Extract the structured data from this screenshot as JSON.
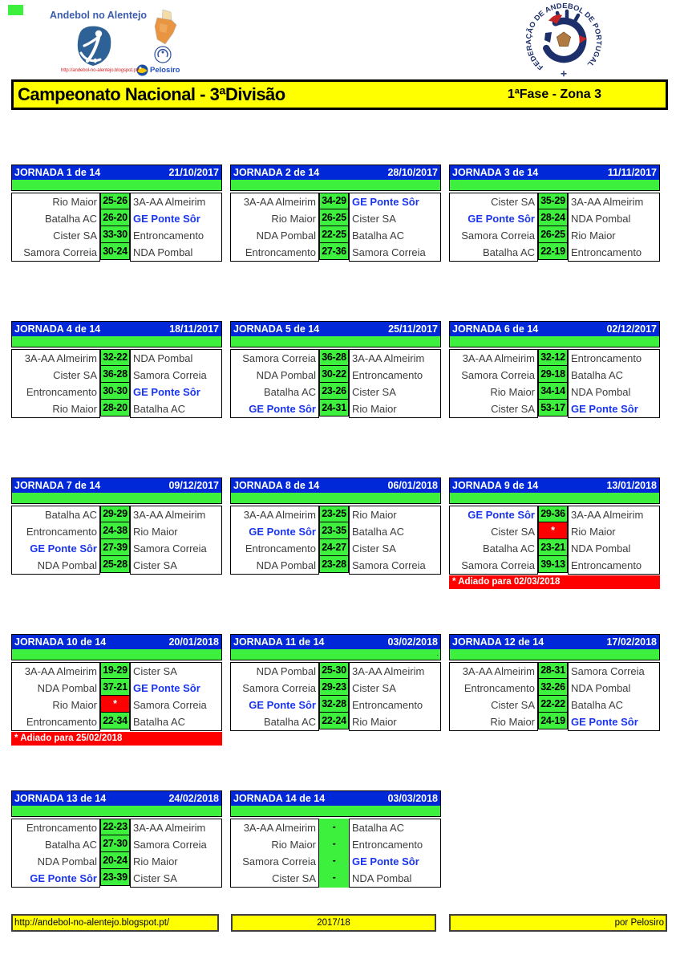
{
  "branding": {
    "site_name": "Andebol no Alentejo",
    "site_url": "http://andebol-no-alentejo.blogspot.pt/",
    "sponsor_name": "Pelosiro",
    "federation_name": "FEDERAÇÃO DE ANDEBOL DE PORTUGAL",
    "federation_cross": "✛"
  },
  "banner": {
    "title": "Campeonato Nacional - 3ªDivisão",
    "phase": "1ªFase - Zona 3"
  },
  "footer": {
    "url": "http://andebol-no-alentejo.blogspot.pt/",
    "season": "2017/18",
    "credit": "por Pelosiro"
  },
  "colors": {
    "header_blue": "#0028d8",
    "cell_green": "#3df03d",
    "postponed_red": "#ff0000",
    "banner_yellow": "#ffff00",
    "highlight_blue": "#1a35ee",
    "team_gray": "#3d3d3d"
  },
  "highlight_team": "GE Ponte Sôr",
  "postponed_marker": "*",
  "jornadas": [
    {
      "title": "JORNADA 1 de 14",
      "date": "21/10/2017",
      "matches": [
        {
          "home": "Rio Maior",
          "score": "25-26",
          "away": "3A-AA Almeirim"
        },
        {
          "home": "Batalha AC",
          "score": "26-20",
          "away": "GE Ponte Sôr"
        },
        {
          "home": "Cister SA",
          "score": "33-30",
          "away": "Entroncamento"
        },
        {
          "home": "Samora Correia",
          "score": "30-24",
          "away": "NDA Pombal"
        }
      ]
    },
    {
      "title": "JORNADA 2 de 14",
      "date": "28/10/2017",
      "matches": [
        {
          "home": "3A-AA Almeirim",
          "score": "34-29",
          "away": "GE Ponte Sôr"
        },
        {
          "home": "Rio Maior",
          "score": "26-25",
          "away": "Cister SA"
        },
        {
          "home": "NDA Pombal",
          "score": "22-25",
          "away": "Batalha AC"
        },
        {
          "home": "Entroncamento",
          "score": "27-36",
          "away": "Samora Correia"
        }
      ]
    },
    {
      "title": "JORNADA 3 de 14",
      "date": "11/11/2017",
      "matches": [
        {
          "home": "Cister SA",
          "score": "35-29",
          "away": "3A-AA Almeirim"
        },
        {
          "home": "GE Ponte Sôr",
          "score": "28-24",
          "away": "NDA Pombal"
        },
        {
          "home": "Samora Correia",
          "score": "26-25",
          "away": "Rio Maior"
        },
        {
          "home": "Batalha AC",
          "score": "22-19",
          "away": "Entroncamento"
        }
      ]
    },
    {
      "title": "JORNADA 4 de 14",
      "date": "18/11/2017",
      "matches": [
        {
          "home": "3A-AA Almeirim",
          "score": "32-22",
          "away": "NDA Pombal"
        },
        {
          "home": "Cister SA",
          "score": "36-28",
          "away": "Samora Correia"
        },
        {
          "home": "Entroncamento",
          "score": "30-30",
          "away": "GE Ponte Sôr"
        },
        {
          "home": "Rio Maior",
          "score": "28-20",
          "away": "Batalha AC"
        }
      ]
    },
    {
      "title": "JORNADA 5 de 14",
      "date": "25/11/2017",
      "matches": [
        {
          "home": "Samora Correia",
          "score": "36-28",
          "away": "3A-AA Almeirim"
        },
        {
          "home": "NDA Pombal",
          "score": "30-22",
          "away": "Entroncamento"
        },
        {
          "home": "Batalha AC",
          "score": "23-26",
          "away": "Cister SA"
        },
        {
          "home": "GE Ponte Sôr",
          "score": "24-31",
          "away": "Rio Maior"
        }
      ]
    },
    {
      "title": "JORNADA 6 de 14",
      "date": "02/12/2017",
      "matches": [
        {
          "home": "3A-AA Almeirim",
          "score": "32-12",
          "away": "Entroncamento"
        },
        {
          "home": "Samora Correia",
          "score": "29-18",
          "away": "Batalha AC"
        },
        {
          "home": "Rio Maior",
          "score": "34-14",
          "away": "NDA Pombal"
        },
        {
          "home": "Cister SA",
          "score": "53-17",
          "away": "GE Ponte Sôr"
        }
      ]
    },
    {
      "title": "JORNADA 7 de 14",
      "date": "09/12/2017",
      "matches": [
        {
          "home": "Batalha AC",
          "score": "29-29",
          "away": "3A-AA Almeirim"
        },
        {
          "home": "Entroncamento",
          "score": "24-38",
          "away": "Rio Maior"
        },
        {
          "home": "GE Ponte Sôr",
          "score": "27-39",
          "away": "Samora Correia"
        },
        {
          "home": "NDA Pombal",
          "score": "25-28",
          "away": "Cister SA"
        }
      ]
    },
    {
      "title": "JORNADA 8 de 14",
      "date": "06/01/2018",
      "matches": [
        {
          "home": "3A-AA Almeirim",
          "score": "23-25",
          "away": "Rio Maior"
        },
        {
          "home": "GE Ponte Sôr",
          "score": "23-35",
          "away": "Batalha AC"
        },
        {
          "home": "Entroncamento",
          "score": "24-27",
          "away": "Cister SA"
        },
        {
          "home": "NDA Pombal",
          "score": "23-28",
          "away": "Samora Correia"
        }
      ]
    },
    {
      "title": "JORNADA 9 de 14",
      "date": "13/01/2018",
      "note": "* Adiado para 02/03/2018",
      "matches": [
        {
          "home": "GE Ponte Sôr",
          "score": "29-36",
          "away": "3A-AA Almeirim"
        },
        {
          "home": "Cister SA",
          "score": "*",
          "away": "Rio Maior"
        },
        {
          "home": "Batalha AC",
          "score": "23-21",
          "away": "NDA Pombal"
        },
        {
          "home": "Samora Correia",
          "score": "39-13",
          "away": "Entroncamento"
        }
      ]
    },
    {
      "title": "JORNADA 10 de 14",
      "date": "20/01/2018",
      "note": "* Adiado para 25/02/2018",
      "matches": [
        {
          "home": "3A-AA Almeirim",
          "score": "19-29",
          "away": "Cister SA"
        },
        {
          "home": "NDA Pombal",
          "score": "37-21",
          "away": "GE Ponte Sôr"
        },
        {
          "home": "Rio Maior",
          "score": "*",
          "away": "Samora Correia"
        },
        {
          "home": "Entroncamento",
          "score": "22-34",
          "away": "Batalha AC"
        }
      ]
    },
    {
      "title": "JORNADA 11 de 14",
      "date": "03/02/2018",
      "dot": true,
      "matches": [
        {
          "home": "NDA Pombal",
          "score": "25-30",
          "away": "3A-AA Almeirim"
        },
        {
          "home": "Samora Correia",
          "score": "29-23",
          "away": "Cister SA"
        },
        {
          "home": "GE Ponte Sôr",
          "score": "32-28",
          "away": "Entroncamento"
        },
        {
          "home": "Batalha AC",
          "score": "22-24",
          "away": "Rio Maior"
        }
      ]
    },
    {
      "title": "JORNADA 12 de 14",
      "date": "17/02/2018",
      "matches": [
        {
          "home": "3A-AA Almeirim",
          "score": "28-31",
          "away": "Samora Correia"
        },
        {
          "home": "Entroncamento",
          "score": "32-26",
          "away": "NDA Pombal"
        },
        {
          "home": "Cister SA",
          "score": "22-22",
          "away": "Batalha AC"
        },
        {
          "home": "Rio Maior",
          "score": "24-19",
          "away": "GE Ponte Sôr"
        }
      ]
    },
    {
      "title": "JORNADA 13 de 14",
      "date": "24/02/2018",
      "matches": [
        {
          "home": "Entroncamento",
          "score": "22-23",
          "away": "3A-AA Almeirim"
        },
        {
          "home": "Batalha AC",
          "score": "27-30",
          "away": "Samora Correia"
        },
        {
          "home": "NDA Pombal",
          "score": "20-24",
          "away": "Rio Maior"
        },
        {
          "home": "GE Ponte Sôr",
          "score": "23-39",
          "away": "Cister SA"
        }
      ]
    },
    {
      "title": "JORNADA 14 de 14",
      "date": "03/03/2018",
      "unplayed": true,
      "matches": [
        {
          "home": "3A-AA Almeirim",
          "score": "-",
          "away": "Batalha AC"
        },
        {
          "home": "Rio Maior",
          "score": "-",
          "away": "Entroncamento"
        },
        {
          "home": "Samora Correia",
          "score": "-",
          "away": "GE Ponte Sôr"
        },
        {
          "home": "Cister SA",
          "score": "-",
          "away": "NDA Pombal"
        }
      ]
    }
  ]
}
